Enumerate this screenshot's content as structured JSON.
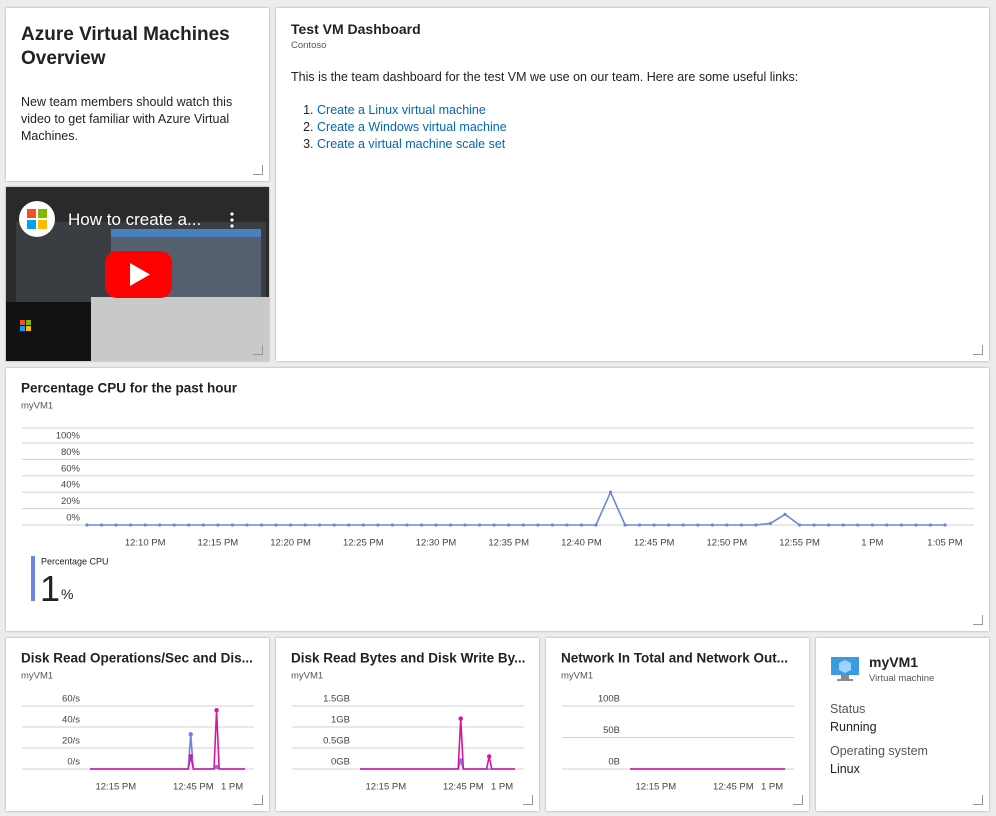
{
  "intro": {
    "title": "Azure Virtual Machines Overview",
    "text": "New team members should watch this video to get familiar with Azure Virtual Machines."
  },
  "video": {
    "title": "How to create a..."
  },
  "markdown": {
    "title": "Test VM Dashboard",
    "subtitle": "Contoso",
    "text": "This is the team dashboard for the test VM we use on our team. Here are some useful links:",
    "links": [
      "Create a Linux virtual machine",
      "Create a Windows virtual machine",
      "Create a virtual machine scale set"
    ]
  },
  "chart_data": [
    {
      "type": "line",
      "title": "Percentage CPU for the past hour",
      "subtitle": "myVM1",
      "markers": true,
      "grid": true,
      "categories": [
        null,
        null,
        null,
        null,
        "12:10 PM",
        null,
        null,
        null,
        null,
        "12:15 PM",
        null,
        null,
        null,
        null,
        "12:20 PM",
        null,
        null,
        null,
        null,
        "12:25 PM",
        null,
        null,
        null,
        null,
        "12:30 PM",
        null,
        null,
        null,
        null,
        "12:35 PM",
        null,
        null,
        null,
        null,
        "12:40 PM",
        null,
        null,
        null,
        null,
        "12:45 PM",
        null,
        null,
        null,
        null,
        "12:50 PM",
        null,
        null,
        null,
        null,
        "12:55 PM",
        null,
        null,
        null,
        null,
        "1 PM",
        null,
        null,
        null,
        null,
        "1:05 PM"
      ],
      "series": [
        {
          "name": "Percentage CPU",
          "color": "#6b85e6",
          "values": [
            0,
            0,
            0,
            0,
            0,
            0,
            0,
            0,
            0,
            0,
            0,
            0,
            0,
            0,
            0,
            0,
            0,
            0,
            0,
            0,
            0,
            0,
            0,
            0,
            0,
            0,
            0,
            0,
            0,
            0,
            0,
            0,
            0,
            0,
            0,
            0,
            40,
            0,
            0,
            0,
            0,
            0,
            0,
            0,
            0,
            0,
            0,
            2,
            13,
            0,
            0,
            0,
            0,
            0,
            0,
            0,
            0,
            0,
            0,
            0
          ]
        }
      ],
      "ylim": [
        0,
        100
      ],
      "yticks": [
        {
          "value": 0,
          "label": "0%"
        },
        {
          "value": 20,
          "label": "20%"
        },
        {
          "value": 40,
          "label": "40%"
        },
        {
          "value": 60,
          "label": "60%"
        },
        {
          "value": 80,
          "label": "80%"
        },
        {
          "value": 100,
          "label": "100%"
        }
      ],
      "summary": {
        "value": 1,
        "unit": "%"
      }
    },
    {
      "type": "line",
      "title": "Disk Read Operations/Sec and Dis...",
      "subtitle": "myVM1",
      "grid": true,
      "categories": [
        null,
        null,
        null,
        null,
        null,
        null,
        null,
        null,
        null,
        null,
        "12:15 PM",
        null,
        null,
        null,
        null,
        null,
        null,
        null,
        null,
        null,
        null,
        null,
        null,
        null,
        null,
        null,
        null,
        null,
        null,
        null,
        null,
        null,
        null,
        null,
        null,
        null,
        null,
        null,
        null,
        null,
        "12:45 PM",
        null,
        null,
        null,
        null,
        null,
        null,
        null,
        null,
        null,
        null,
        null,
        null,
        null,
        null,
        "1 PM",
        null,
        null,
        null,
        null,
        null
      ],
      "series": [
        {
          "color": "#7080e0",
          "values": [
            0,
            0,
            0,
            0,
            0,
            0,
            0,
            0,
            0,
            0,
            0,
            0,
            0,
            0,
            0,
            0,
            0,
            0,
            0,
            0,
            0,
            0,
            0,
            0,
            0,
            0,
            0,
            0,
            0,
            0,
            0,
            0,
            0,
            0,
            0,
            0,
            0,
            0,
            0,
            33,
            0,
            0,
            0,
            0,
            0,
            0,
            0,
            0,
            0,
            2,
            0,
            0,
            0,
            0,
            0,
            0,
            0,
            0,
            0,
            0,
            0
          ]
        },
        {
          "color": "#d6179c",
          "values": [
            0,
            0,
            0,
            0,
            0,
            0,
            0,
            0,
            0,
            0,
            0,
            0,
            0,
            0,
            0,
            0,
            0,
            0,
            0,
            0,
            0,
            0,
            0,
            0,
            0,
            0,
            0,
            0,
            0,
            0,
            0,
            0,
            0,
            0,
            0,
            0,
            0,
            0,
            0,
            12,
            0,
            0,
            0,
            0,
            0,
            0,
            0,
            0,
            0,
            56,
            0,
            0,
            0,
            0,
            0,
            0,
            0,
            0,
            0,
            0,
            0
          ]
        }
      ],
      "ylim": [
        0,
        60
      ],
      "yticks": [
        {
          "value": 0,
          "label": "0/s"
        },
        {
          "value": 20,
          "label": "20/s"
        },
        {
          "value": 40,
          "label": "40/s"
        },
        {
          "value": 60,
          "label": "60/s"
        }
      ]
    },
    {
      "type": "line",
      "title": "Disk Read Bytes and Disk Write By...",
      "subtitle": "myVM1",
      "grid": true,
      "categories": [
        null,
        null,
        null,
        null,
        null,
        null,
        null,
        null,
        null,
        null,
        "12:15 PM",
        null,
        null,
        null,
        null,
        null,
        null,
        null,
        null,
        null,
        null,
        null,
        null,
        null,
        null,
        null,
        null,
        null,
        null,
        null,
        null,
        null,
        null,
        null,
        null,
        null,
        null,
        null,
        null,
        null,
        "12:45 PM",
        null,
        null,
        null,
        null,
        null,
        null,
        null,
        null,
        null,
        null,
        null,
        null,
        null,
        null,
        "1 PM",
        null,
        null,
        null,
        null,
        null
      ],
      "series": [
        {
          "color": "#7080e0",
          "values": [
            0,
            0,
            0,
            0,
            0,
            0,
            0,
            0,
            0,
            0,
            0,
            0,
            0,
            0,
            0,
            0,
            0,
            0,
            0,
            0,
            0,
            0,
            0,
            0,
            0,
            0,
            0,
            0,
            0,
            0,
            0,
            0,
            0,
            0,
            0,
            0,
            0,
            0,
            0,
            0.2,
            0,
            0,
            0,
            0,
            0,
            0,
            0,
            0,
            0,
            0,
            0,
            0,
            0,
            0,
            0,
            0,
            0,
            0,
            0,
            0,
            0
          ]
        },
        {
          "color": "#d6179c",
          "values": [
            0,
            0,
            0,
            0,
            0,
            0,
            0,
            0,
            0,
            0,
            0,
            0,
            0,
            0,
            0,
            0,
            0,
            0,
            0,
            0,
            0,
            0,
            0,
            0,
            0,
            0,
            0,
            0,
            0,
            0,
            0,
            0,
            0,
            0,
            0,
            0,
            0,
            0,
            0,
            1.2,
            0,
            0,
            0,
            0,
            0,
            0,
            0,
            0,
            0,
            0,
            0.3,
            0,
            0,
            0,
            0,
            0,
            0,
            0,
            0,
            0,
            0
          ]
        }
      ],
      "ylim": [
        0,
        1.5
      ],
      "yticks": [
        {
          "value": 0,
          "label": "0GB"
        },
        {
          "value": 0.5,
          "label": "0.5GB"
        },
        {
          "value": 1,
          "label": "1GB"
        },
        {
          "value": 1.5,
          "label": "1.5GB"
        }
      ]
    },
    {
      "type": "line",
      "title": "Network In Total and Network Out...",
      "subtitle": "myVM1",
      "grid": true,
      "categories": [
        null,
        null,
        null,
        null,
        null,
        null,
        null,
        null,
        null,
        null,
        "12:15 PM",
        null,
        null,
        null,
        null,
        null,
        null,
        null,
        null,
        null,
        null,
        null,
        null,
        null,
        null,
        null,
        null,
        null,
        null,
        null,
        null,
        null,
        null,
        null,
        null,
        null,
        null,
        null,
        null,
        null,
        "12:45 PM",
        null,
        null,
        null,
        null,
        null,
        null,
        null,
        null,
        null,
        null,
        null,
        null,
        null,
        null,
        "1 PM",
        null,
        null,
        null,
        null,
        null
      ],
      "series": [
        {
          "color": "#7080e0",
          "values": [
            0,
            0,
            0,
            0,
            0,
            0,
            0,
            0,
            0,
            0,
            0,
            0,
            0,
            0,
            0,
            0,
            0,
            0,
            0,
            0,
            0,
            0,
            0,
            0,
            0,
            0,
            0,
            0,
            0,
            0,
            0,
            0,
            0,
            0,
            0,
            0,
            0,
            0,
            0,
            0,
            0,
            0,
            0,
            0,
            0,
            0,
            0,
            0,
            0,
            0,
            0,
            0,
            0,
            0,
            0,
            0,
            0,
            0,
            0,
            0,
            0
          ]
        },
        {
          "color": "#d6179c",
          "values": [
            0,
            0,
            0,
            0,
            0,
            0,
            0,
            0,
            0,
            0,
            0,
            0,
            0,
            0,
            0,
            0,
            0,
            0,
            0,
            0,
            0,
            0,
            0,
            0,
            0,
            0,
            0,
            0,
            0,
            0,
            0,
            0,
            0,
            0,
            0,
            0,
            0,
            0,
            0,
            0,
            0,
            0,
            0,
            0,
            0,
            0,
            0,
            0,
            0,
            0,
            0,
            0,
            0,
            0,
            0,
            0,
            0,
            0,
            0,
            0,
            0
          ]
        }
      ],
      "ylim": [
        0,
        100
      ],
      "yticks": [
        {
          "value": 0,
          "label": "0B"
        },
        {
          "value": 50,
          "label": "50B"
        },
        {
          "value": 100,
          "label": "100B"
        }
      ]
    }
  ],
  "vm": {
    "name": "myVM1",
    "type": "Virtual machine",
    "fields": [
      {
        "label": "Status",
        "value": "Running"
      },
      {
        "label": "Operating system",
        "value": "Linux"
      }
    ]
  }
}
